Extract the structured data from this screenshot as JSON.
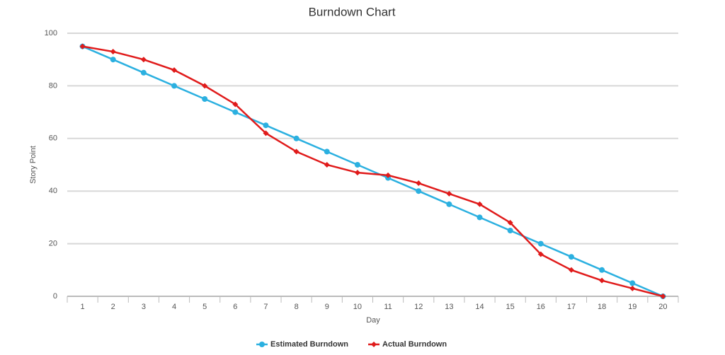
{
  "chart_data": {
    "type": "line",
    "title": "Burndown Chart",
    "x_label": "Day",
    "y_label": "Story Point",
    "categories": [
      1,
      2,
      3,
      4,
      5,
      6,
      7,
      8,
      9,
      10,
      11,
      12,
      13,
      14,
      15,
      16,
      17,
      18,
      19,
      20
    ],
    "series": [
      {
        "name": "Estimated Burndown",
        "color": "#2bb0e0",
        "marker": "circle",
        "values": [
          95,
          90,
          85,
          80,
          75,
          70,
          65,
          60,
          55,
          50,
          45,
          40,
          35,
          30,
          25,
          20,
          15,
          10,
          5,
          0
        ]
      },
      {
        "name": "Actual Burndown",
        "color": "#e01b1b",
        "marker": "diamond",
        "values": [
          95,
          93,
          90,
          86,
          80,
          73,
          62,
          55,
          50,
          47,
          46,
          43,
          39,
          35,
          28,
          16,
          10,
          6,
          3,
          0
        ]
      }
    ],
    "ylim": [
      0,
      100
    ],
    "yticks": [
      0,
      20,
      40,
      60,
      80,
      100
    ],
    "grid": true,
    "legend": "bottom"
  }
}
